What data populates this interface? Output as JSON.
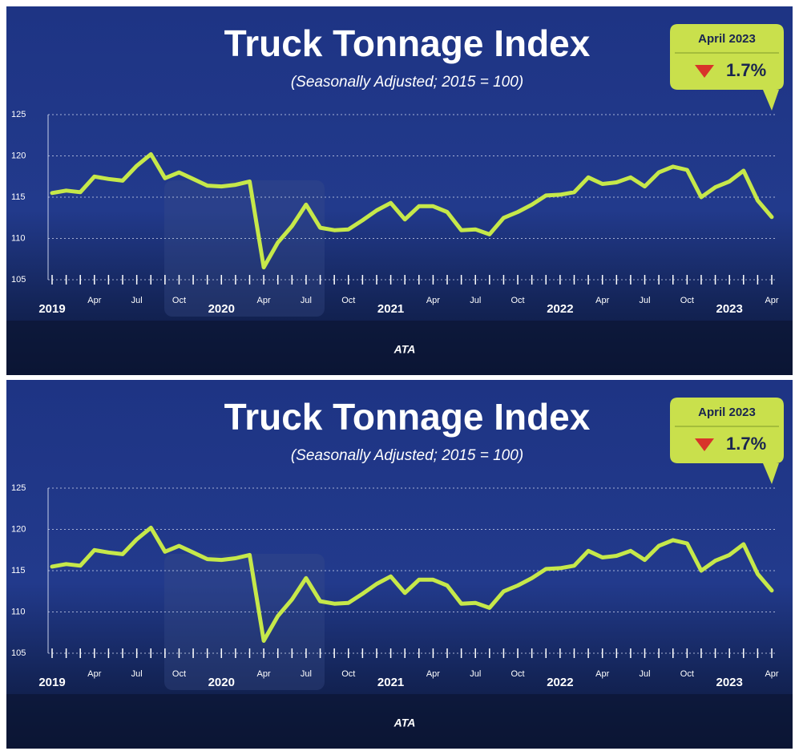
{
  "chart_data": [
    {
      "type": "line",
      "title": "Truck Tonnage Index",
      "subtitle": "(Seasonally Adjusted; 2015 = 100)",
      "callout_title": "April 2023",
      "callout_value": "1.7%",
      "logo": "ATA",
      "categories": [
        "2019",
        null,
        null,
        "Apr",
        null,
        null,
        "Jul",
        null,
        null,
        "Oct",
        null,
        null,
        "2020",
        null,
        null,
        "Apr",
        null,
        null,
        "Jul",
        null,
        null,
        "Oct",
        null,
        null,
        "2021",
        null,
        null,
        "Apr",
        null,
        null,
        "Jul",
        null,
        null,
        "Oct",
        null,
        null,
        "2022",
        null,
        null,
        "Apr",
        null,
        null,
        "Jul",
        null,
        null,
        "Oct",
        null,
        null,
        "2023",
        null,
        null,
        "Apr"
      ],
      "values": [
        115.5,
        115.8,
        115.6,
        117.5,
        117.2,
        117.0,
        118.8,
        120.2,
        117.3,
        118.0,
        117.2,
        116.4,
        116.3,
        116.5,
        116.9,
        106.5,
        109.5,
        111.5,
        114.1,
        111.3,
        111.0,
        111.1,
        112.2,
        113.4,
        114.3,
        112.3,
        113.9,
        113.9,
        113.2,
        111.0,
        111.1,
        110.5,
        112.5,
        113.2,
        114.1,
        115.2,
        115.3,
        115.6,
        117.4,
        116.6,
        116.8,
        117.4,
        116.3,
        118.0,
        118.7,
        118.3,
        115.0,
        116.2,
        116.9,
        118.2,
        114.6,
        112.6
      ],
      "color": "#c6e84a",
      "ylim": [
        105,
        125
      ],
      "yticks": [
        105,
        110,
        115,
        120,
        125
      ],
      "grid": true
    },
    {
      "type": "line",
      "title": "Truck Tonnage Index",
      "subtitle": "(Seasonally Adjusted; 2015 = 100)",
      "callout_title": "April 2023",
      "callout_value": "1.7%",
      "logo": "ATA",
      "categories": [
        "2019",
        null,
        null,
        "Apr",
        null,
        null,
        "Jul",
        null,
        null,
        "Oct",
        null,
        null,
        "2020",
        null,
        null,
        "Apr",
        null,
        null,
        "Jul",
        null,
        null,
        "Oct",
        null,
        null,
        "2021",
        null,
        null,
        "Apr",
        null,
        null,
        "Jul",
        null,
        null,
        "Oct",
        null,
        null,
        "2022",
        null,
        null,
        "Apr",
        null,
        null,
        "Jul",
        null,
        null,
        "Oct",
        null,
        null,
        "2023",
        null,
        null,
        "Apr"
      ],
      "values": [
        115.5,
        115.8,
        115.6,
        117.5,
        117.2,
        117.0,
        118.8,
        120.2,
        117.3,
        118.0,
        117.2,
        116.4,
        116.3,
        116.5,
        116.9,
        106.5,
        109.5,
        111.5,
        114.1,
        111.3,
        111.0,
        111.1,
        112.2,
        113.4,
        114.3,
        112.3,
        113.9,
        113.9,
        113.2,
        111.0,
        111.1,
        110.5,
        112.5,
        113.2,
        114.1,
        115.2,
        115.3,
        115.6,
        117.4,
        116.6,
        116.8,
        117.4,
        116.3,
        118.0,
        118.7,
        118.3,
        115.0,
        116.2,
        116.9,
        118.2,
        114.6,
        112.6
      ],
      "color": "#c6e84a",
      "ylim": [
        105,
        125
      ],
      "yticks": [
        105,
        110,
        115,
        120,
        125
      ],
      "grid": true
    }
  ]
}
